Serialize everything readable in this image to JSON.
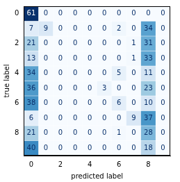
{
  "chart_data": {
    "type": "heatmap",
    "x_label": "predicted label",
    "y_label": "true label",
    "x": [
      0,
      1,
      2,
      3,
      4,
      5,
      6,
      7,
      8,
      9
    ],
    "y": [
      0,
      1,
      2,
      3,
      4,
      5,
      6,
      7,
      8,
      9
    ],
    "cells": [
      [
        61,
        0,
        0,
        0,
        0,
        0,
        0,
        0,
        0,
        0
      ],
      [
        7,
        9,
        0,
        0,
        0,
        0,
        2,
        0,
        34,
        0
      ],
      [
        21,
        0,
        0,
        0,
        0,
        0,
        0,
        1,
        31,
        0
      ],
      [
        13,
        0,
        0,
        0,
        0,
        0,
        0,
        1,
        33,
        0
      ],
      [
        34,
        0,
        0,
        0,
        0,
        0,
        5,
        0,
        11,
        0
      ],
      [
        36,
        0,
        0,
        0,
        0,
        3,
        0,
        0,
        23,
        0
      ],
      [
        38,
        0,
        0,
        0,
        0,
        0,
        6,
        0,
        10,
        0
      ],
      [
        6,
        0,
        0,
        0,
        0,
        0,
        0,
        9,
        37,
        0
      ],
      [
        21,
        0,
        0,
        0,
        0,
        0,
        1,
        0,
        28,
        0
      ],
      [
        40,
        0,
        0,
        0,
        0,
        0,
        0,
        0,
        18,
        0
      ]
    ],
    "xlim": [
      -0.5,
      9.5
    ],
    "ylim": [
      9.5,
      -0.5
    ],
    "xticks": [
      0,
      2,
      4,
      6,
      8
    ],
    "yticks": [
      0,
      2,
      4,
      6,
      8
    ],
    "color": "Blues",
    "data_labels": true
  }
}
